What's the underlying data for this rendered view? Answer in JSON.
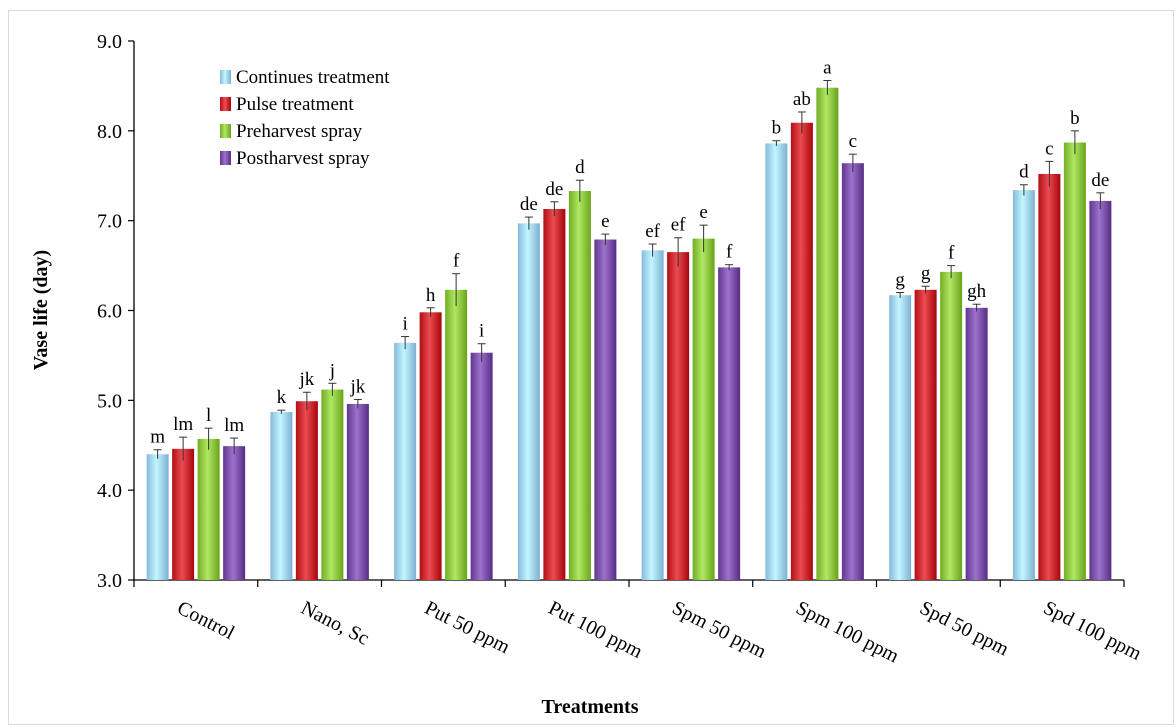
{
  "chart_data": {
    "type": "bar",
    "title": "",
    "xlabel": "Treatments",
    "ylabel": "Vase life (day)",
    "ylim": [
      3.0,
      9.0
    ],
    "yticks": [
      "3.0",
      "4.0",
      "5.0",
      "6.0",
      "7.0",
      "8.0",
      "9.0"
    ],
    "legend_position": "top-left",
    "categories": [
      "Control",
      "Nano, Sc",
      "Put 50 ppm",
      "Put 100 ppm",
      "Spm 50 ppm",
      "Spm 100 ppm",
      "Spd 50 ppm",
      "Spd 100 ppm"
    ],
    "series": [
      {
        "name": "Continues  treatment",
        "color": "#9fd3f5",
        "values": [
          4.4,
          4.87,
          5.64,
          6.97,
          6.67,
          7.86,
          6.17,
          7.34
        ],
        "errors": [
          0.05,
          0.02,
          0.07,
          0.07,
          0.07,
          0.03,
          0.03,
          0.06
        ],
        "labels": [
          "m",
          "k",
          "i",
          "de",
          "ef",
          "b",
          "g",
          "d"
        ]
      },
      {
        "name": "Pulse treatment",
        "color": "#c8282e",
        "values": [
          4.46,
          4.99,
          5.98,
          7.13,
          6.65,
          8.09,
          6.23,
          7.52
        ],
        "errors": [
          0.13,
          0.1,
          0.05,
          0.08,
          0.16,
          0.12,
          0.04,
          0.14
        ],
        "labels": [
          "lm",
          "jk",
          "h",
          "de",
          "ef",
          "ab",
          "g",
          "c"
        ]
      },
      {
        "name": "Preharvest spray",
        "color": "#8cc63e",
        "values": [
          4.57,
          5.12,
          6.23,
          7.33,
          6.8,
          8.48,
          6.43,
          7.87
        ],
        "errors": [
          0.12,
          0.07,
          0.18,
          0.12,
          0.15,
          0.08,
          0.07,
          0.13
        ],
        "labels": [
          "l",
          "j",
          "f",
          "d",
          "e",
          "a",
          "f",
          "b"
        ]
      },
      {
        "name": "Postharvest spray",
        "color": "#7a4fa8",
        "values": [
          4.49,
          4.96,
          5.53,
          6.79,
          6.48,
          7.64,
          6.03,
          7.22
        ],
        "errors": [
          0.09,
          0.05,
          0.1,
          0.06,
          0.03,
          0.1,
          0.04,
          0.09
        ],
        "labels": [
          "lm",
          "jk",
          "i",
          "e",
          "f",
          "c",
          "gh",
          "de"
        ]
      }
    ]
  }
}
